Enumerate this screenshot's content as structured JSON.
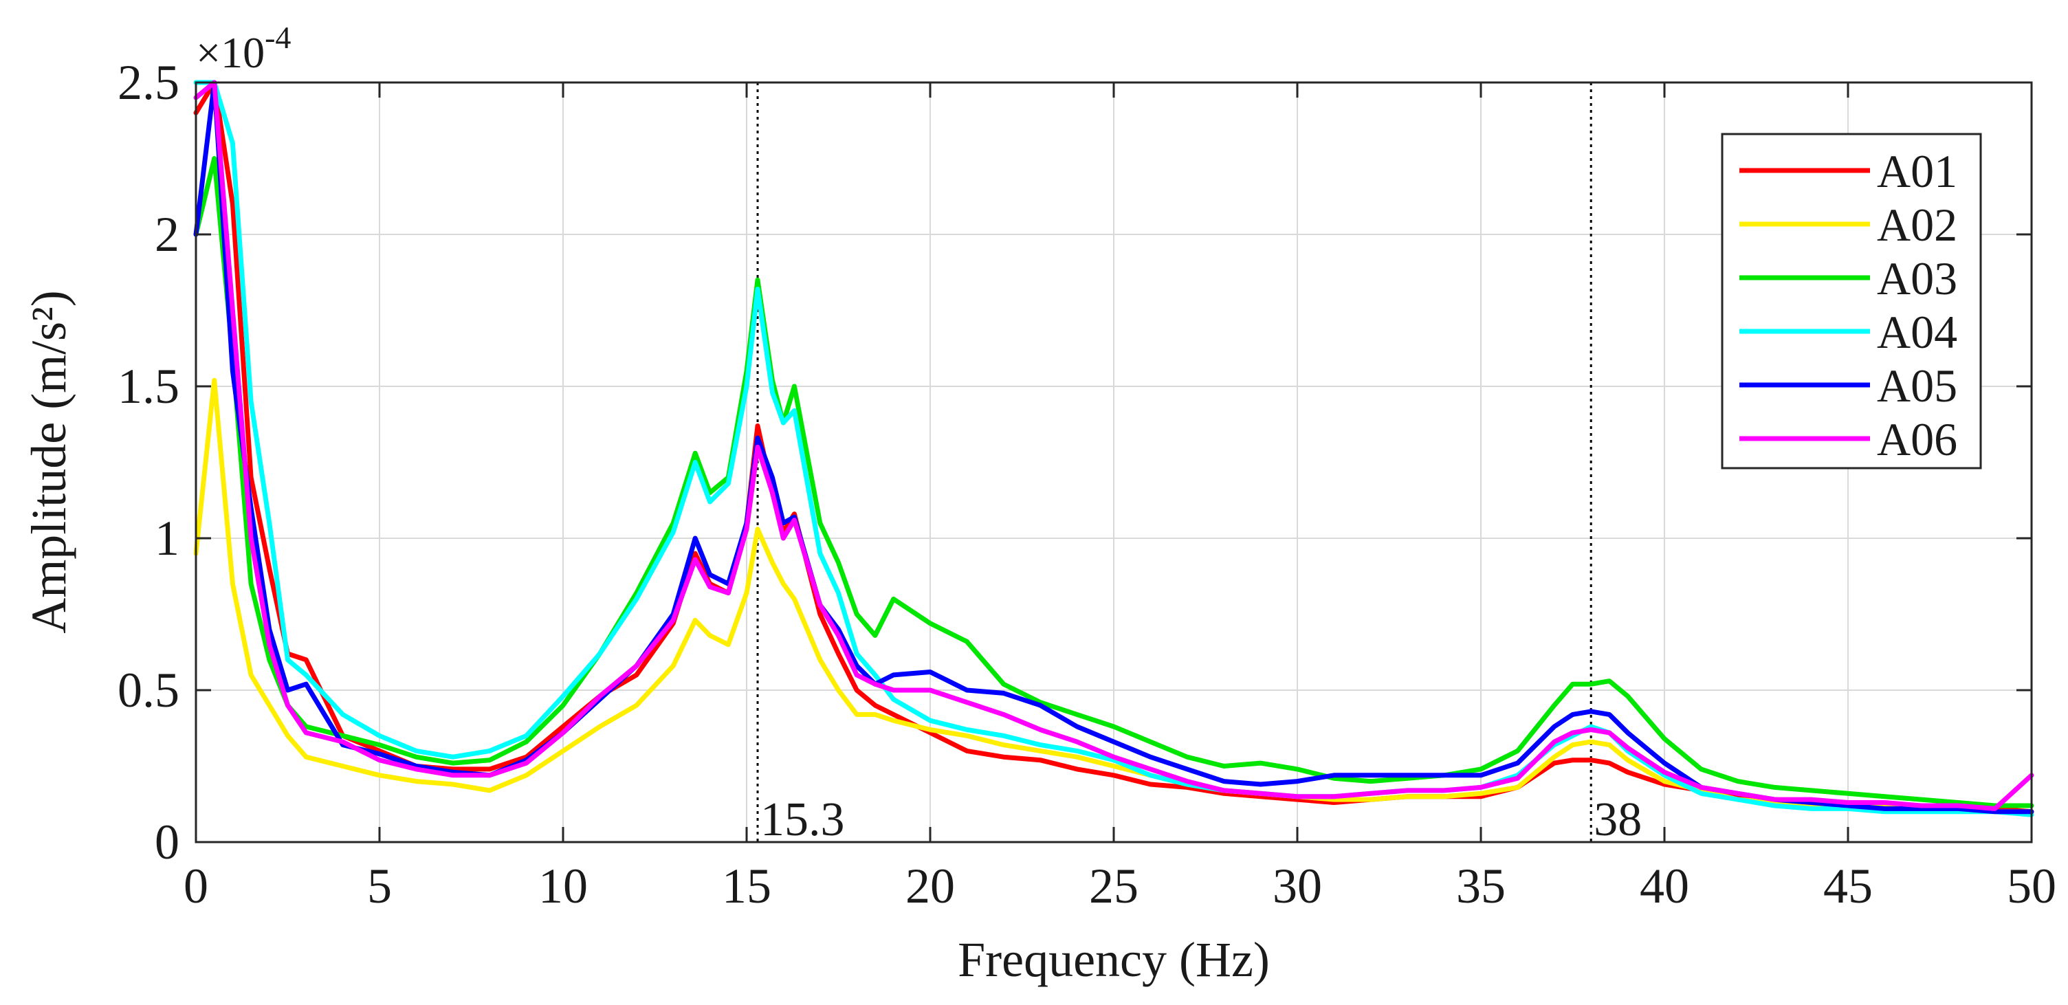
{
  "chart_data": {
    "type": "line",
    "xlabel": "Frequency (Hz)",
    "ylabel": "Amplitude (m/s²)",
    "y_multiplier": "×10",
    "y_multiplier_exponent": "-4",
    "xlim": [
      0,
      50
    ],
    "ylim": [
      0,
      2.5
    ],
    "xticks": [
      0,
      5,
      10,
      15,
      20,
      25,
      30,
      35,
      40,
      45,
      50
    ],
    "xtick_labels": [
      "0",
      "5",
      "10",
      "15",
      "20",
      "25",
      "30",
      "35",
      "40",
      "45",
      "50"
    ],
    "yticks": [
      0,
      0.5,
      1,
      1.5,
      2,
      2.5
    ],
    "ytick_labels": [
      "0",
      "0.5",
      "1",
      "1.5",
      "2",
      "2.5"
    ],
    "grid": true,
    "legend_position": "top-right",
    "annotations": [
      {
        "x": 15.3,
        "label": "15.3",
        "style": "dotted vertical line"
      },
      {
        "x": 38,
        "label": "38",
        "style": "dotted vertical line"
      }
    ],
    "x": [
      0,
      0.5,
      1,
      1.5,
      2,
      2.5,
      3,
      4,
      5,
      6,
      7,
      8,
      9,
      10,
      11,
      12,
      13,
      13.6,
      14,
      14.5,
      15,
      15.3,
      15.7,
      16,
      16.3,
      17,
      17.5,
      18,
      18.5,
      19,
      20,
      21,
      22,
      23,
      24,
      25,
      26,
      27,
      28,
      29,
      30,
      31,
      32,
      33,
      34,
      35,
      36,
      37,
      37.5,
      38,
      38.5,
      39,
      40,
      41,
      42,
      43,
      44,
      45,
      46,
      47,
      48,
      49,
      50
    ],
    "series": [
      {
        "name": "A01",
        "color": "#ff0000",
        "values": [
          2.4,
          2.5,
          2.1,
          1.2,
          0.9,
          0.62,
          0.6,
          0.35,
          0.3,
          0.25,
          0.24,
          0.24,
          0.28,
          0.38,
          0.48,
          0.55,
          0.72,
          0.95,
          0.85,
          0.82,
          1.05,
          1.37,
          1.15,
          1.02,
          1.08,
          0.75,
          0.62,
          0.5,
          0.45,
          0.42,
          0.36,
          0.3,
          0.28,
          0.27,
          0.24,
          0.22,
          0.19,
          0.18,
          0.16,
          0.15,
          0.14,
          0.13,
          0.14,
          0.15,
          0.15,
          0.15,
          0.18,
          0.26,
          0.27,
          0.27,
          0.26,
          0.23,
          0.19,
          0.17,
          0.15,
          0.14,
          0.13,
          0.12,
          0.12,
          0.12,
          0.11,
          0.11,
          0.1
        ]
      },
      {
        "name": "A02",
        "color": "#ffee00",
        "values": [
          0.95,
          1.52,
          0.85,
          0.55,
          0.45,
          0.35,
          0.28,
          0.25,
          0.22,
          0.2,
          0.19,
          0.17,
          0.22,
          0.3,
          0.38,
          0.45,
          0.58,
          0.73,
          0.68,
          0.65,
          0.82,
          1.03,
          0.92,
          0.85,
          0.8,
          0.6,
          0.5,
          0.42,
          0.42,
          0.4,
          0.37,
          0.35,
          0.32,
          0.3,
          0.28,
          0.25,
          0.22,
          0.19,
          0.17,
          0.16,
          0.15,
          0.14,
          0.14,
          0.15,
          0.15,
          0.16,
          0.18,
          0.28,
          0.32,
          0.33,
          0.32,
          0.27,
          0.2,
          0.17,
          0.14,
          0.13,
          0.12,
          0.12,
          0.12,
          0.11,
          0.11,
          0.1,
          0.1
        ]
      },
      {
        "name": "A03",
        "color": "#00e600",
        "values": [
          2.0,
          2.25,
          1.6,
          0.85,
          0.6,
          0.45,
          0.38,
          0.35,
          0.32,
          0.28,
          0.26,
          0.27,
          0.33,
          0.45,
          0.62,
          0.82,
          1.05,
          1.28,
          1.15,
          1.2,
          1.55,
          1.85,
          1.52,
          1.38,
          1.5,
          1.05,
          0.92,
          0.75,
          0.68,
          0.8,
          0.72,
          0.66,
          0.52,
          0.46,
          0.42,
          0.38,
          0.33,
          0.28,
          0.25,
          0.26,
          0.24,
          0.21,
          0.2,
          0.21,
          0.22,
          0.24,
          0.3,
          0.45,
          0.52,
          0.52,
          0.53,
          0.48,
          0.34,
          0.24,
          0.2,
          0.18,
          0.17,
          0.16,
          0.15,
          0.14,
          0.13,
          0.12,
          0.12
        ]
      },
      {
        "name": "A04",
        "color": "#00ffff",
        "values": [
          2.5,
          2.5,
          2.3,
          1.45,
          1.05,
          0.6,
          0.55,
          0.42,
          0.35,
          0.3,
          0.28,
          0.3,
          0.35,
          0.48,
          0.62,
          0.8,
          1.02,
          1.25,
          1.12,
          1.18,
          1.5,
          1.82,
          1.48,
          1.38,
          1.42,
          0.95,
          0.82,
          0.62,
          0.55,
          0.47,
          0.4,
          0.37,
          0.35,
          0.32,
          0.3,
          0.27,
          0.22,
          0.19,
          0.17,
          0.16,
          0.15,
          0.15,
          0.16,
          0.17,
          0.17,
          0.18,
          0.22,
          0.32,
          0.35,
          0.38,
          0.36,
          0.3,
          0.22,
          0.16,
          0.14,
          0.12,
          0.11,
          0.11,
          0.1,
          0.1,
          0.1,
          0.1,
          0.09
        ]
      },
      {
        "name": "A05",
        "color": "#0000ff",
        "values": [
          2.0,
          2.55,
          1.55,
          1.1,
          0.7,
          0.5,
          0.52,
          0.32,
          0.29,
          0.25,
          0.23,
          0.22,
          0.27,
          0.36,
          0.47,
          0.58,
          0.75,
          1.0,
          0.88,
          0.85,
          1.05,
          1.33,
          1.2,
          1.05,
          1.07,
          0.78,
          0.7,
          0.58,
          0.52,
          0.55,
          0.56,
          0.5,
          0.49,
          0.45,
          0.38,
          0.33,
          0.28,
          0.24,
          0.2,
          0.19,
          0.2,
          0.22,
          0.22,
          0.22,
          0.22,
          0.22,
          0.26,
          0.38,
          0.42,
          0.43,
          0.42,
          0.36,
          0.26,
          0.18,
          0.16,
          0.14,
          0.13,
          0.12,
          0.11,
          0.11,
          0.11,
          0.1,
          0.1
        ]
      },
      {
        "name": "A06",
        "color": "#ff00ff",
        "values": [
          2.45,
          2.5,
          1.75,
          1.0,
          0.65,
          0.45,
          0.36,
          0.33,
          0.27,
          0.24,
          0.22,
          0.22,
          0.26,
          0.36,
          0.48,
          0.58,
          0.73,
          0.93,
          0.84,
          0.82,
          1.03,
          1.3,
          1.15,
          1.0,
          1.06,
          0.78,
          0.68,
          0.55,
          0.52,
          0.5,
          0.5,
          0.46,
          0.42,
          0.37,
          0.33,
          0.28,
          0.24,
          0.2,
          0.17,
          0.16,
          0.15,
          0.15,
          0.16,
          0.17,
          0.17,
          0.18,
          0.21,
          0.33,
          0.36,
          0.37,
          0.36,
          0.31,
          0.23,
          0.18,
          0.16,
          0.14,
          0.14,
          0.13,
          0.13,
          0.12,
          0.12,
          0.11,
          0.22
        ]
      }
    ]
  }
}
